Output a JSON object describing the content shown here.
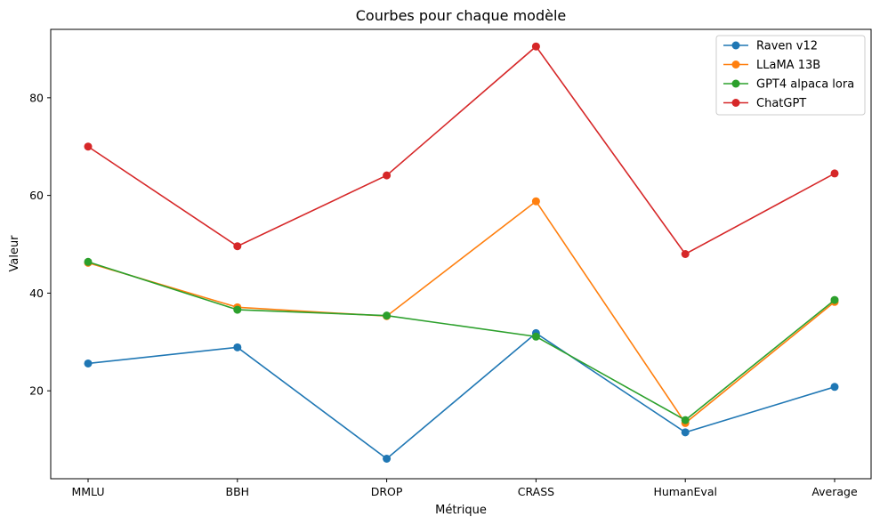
{
  "chart_data": {
    "type": "line",
    "title": "Courbes pour chaque modèle",
    "xlabel": "Métrique",
    "ylabel": "Valeur",
    "categories": [
      "MMLU",
      "BBH",
      "DROP",
      "CRASS",
      "HumanEval",
      "Average"
    ],
    "ylim": [
      2,
      94
    ],
    "yticks": [
      20,
      40,
      60,
      80
    ],
    "grid": false,
    "legend": "top-right",
    "series": [
      {
        "name": "Raven v12",
        "color": "#1f77b4",
        "values": [
          25.6,
          28.9,
          6.1,
          31.8,
          11.5,
          20.8
        ]
      },
      {
        "name": "LLaMA 13B",
        "color": "#ff7f0e",
        "values": [
          46.2,
          37.1,
          35.3,
          58.8,
          13.4,
          38.2
        ]
      },
      {
        "name": "GPT4 alpaca lora",
        "color": "#2ca02c",
        "values": [
          46.4,
          36.6,
          35.4,
          31.1,
          14.0,
          38.6
        ]
      },
      {
        "name": "ChatGPT",
        "color": "#d62728",
        "values": [
          70.0,
          49.6,
          64.1,
          90.5,
          48.0,
          64.5
        ]
      }
    ]
  }
}
